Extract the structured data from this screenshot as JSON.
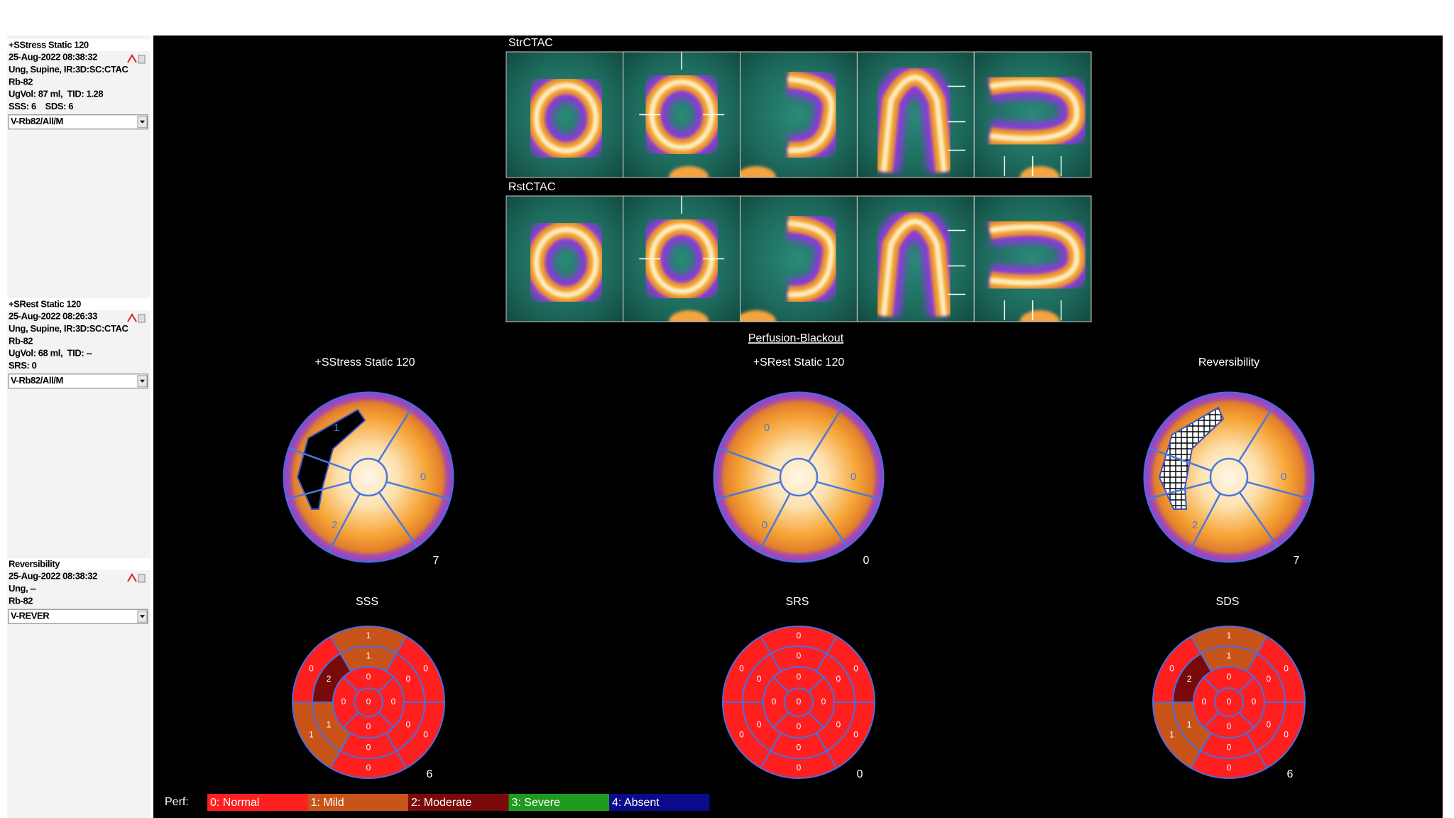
{
  "studies": [
    {
      "title": "+SStress Static 120",
      "datetime": "25-Aug-2022 08:38:32",
      "protocol": "Ung, Supine, IR:3D:SC:CTAC",
      "isotope": "Rb-82",
      "volume": "UgVol: 87 ml,  TID: 1.28",
      "scores": "SSS: 6    SDS: 6",
      "dropdown": "V-Rb82/All/M"
    },
    {
      "title": "+SRest Static 120",
      "datetime": "25-Aug-2022 08:26:33",
      "protocol": "Ung, Supine, IR:3D:SC:CTAC",
      "isotope": "Rb-82",
      "volume": "UgVol: 68 ml,  TID: --",
      "scores": "SRS: 0",
      "dropdown": "V-Rb82/All/M"
    },
    {
      "title": "Reversibility",
      "datetime": "25-Aug-2022 08:38:32",
      "protocol": "Ung, --",
      "isotope": "Rb-82",
      "dropdown": "V-REVER"
    }
  ],
  "image_rows": [
    "StrCTAC",
    "RstCTAC"
  ],
  "view_title": "Perfusion-Blackout",
  "polar_maps": [
    {
      "title": "+SStress Static 120",
      "region_values": [
        1,
        0,
        2
      ],
      "total": 7
    },
    {
      "title": "+SRest Static 120",
      "region_values": [
        0,
        0,
        0
      ],
      "total": 0
    },
    {
      "title": "Reversibility",
      "region_values": [
        null,
        0,
        2
      ],
      "total": 7
    }
  ],
  "score_maps": [
    {
      "title": "SSS",
      "segments": [
        1,
        0,
        1,
        0,
        0,
        0,
        1,
        2,
        1,
        0,
        0,
        0,
        0,
        0,
        0,
        0,
        0
      ],
      "total": 6
    },
    {
      "title": "SRS",
      "segments": [
        0,
        0,
        0,
        0,
        0,
        0,
        0,
        0,
        0,
        0,
        0,
        0,
        0,
        0,
        0,
        0,
        0
      ],
      "total": 0
    },
    {
      "title": "SDS",
      "segments": [
        1,
        0,
        1,
        0,
        0,
        0,
        1,
        2,
        1,
        0,
        0,
        0,
        0,
        0,
        0,
        0,
        0
      ],
      "total": 6
    }
  ],
  "legend": {
    "label": "Perf:",
    "items": [
      {
        "text": "0: Normal",
        "color": "#ff1f1f"
      },
      {
        "text": "1: Mild",
        "color": "#c8541a"
      },
      {
        "text": "2: Moderate",
        "color": "#7a0a0a"
      },
      {
        "text": "3: Severe",
        "color": "#1f9a1f"
      },
      {
        "text": "4: Absent",
        "color": "#0a0a8a"
      }
    ]
  }
}
